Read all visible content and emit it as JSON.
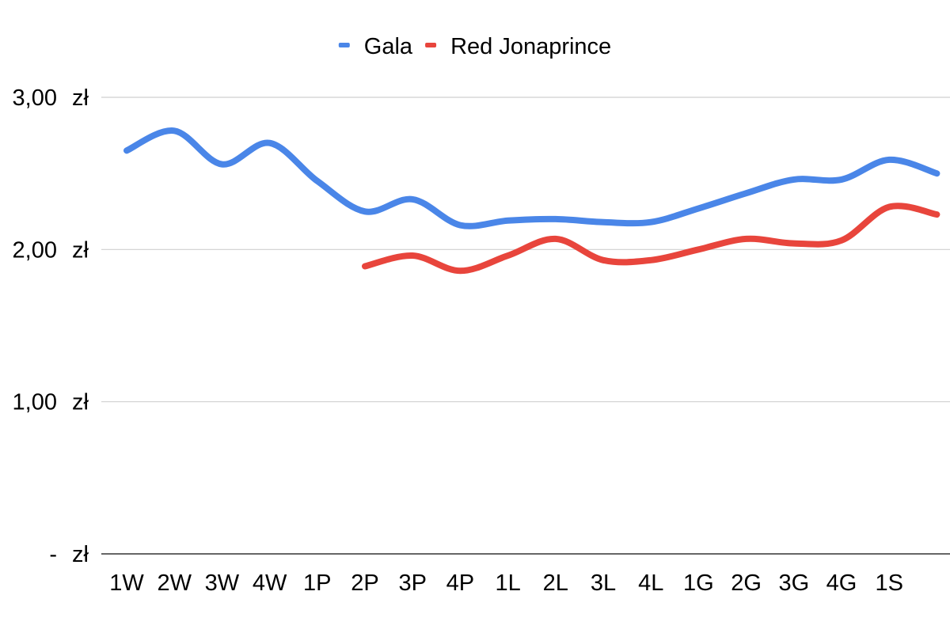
{
  "chart_data": {
    "type": "line",
    "title": "",
    "xlabel": "",
    "ylabel": "",
    "legend_position": "top-center",
    "categories": [
      "1W",
      "2W",
      "3W",
      "4W",
      "1P",
      "2P",
      "3P",
      "4P",
      "1L",
      "2L",
      "3L",
      "4L",
      "1G",
      "2G",
      "3G",
      "4G",
      "1S",
      ""
    ],
    "ylim": [
      0,
      3
    ],
    "yticks": [
      {
        "value": 3,
        "label": "3,00",
        "unit": "zł"
      },
      {
        "value": 2,
        "label": "2,00",
        "unit": "zł"
      },
      {
        "value": 1,
        "label": "1,00",
        "unit": "zł"
      },
      {
        "value": 0,
        "label": "-",
        "unit": "zł"
      }
    ],
    "series": [
      {
        "name": "Gala",
        "color": "#4A86E8",
        "values": [
          2.65,
          2.78,
          2.56,
          2.7,
          2.45,
          2.25,
          2.33,
          2.16,
          2.19,
          2.2,
          2.18,
          2.18,
          2.27,
          2.37,
          2.46,
          2.46,
          2.59,
          2.5
        ]
      },
      {
        "name": "Red Jonaprince",
        "color": "#E8453C",
        "values": [
          null,
          null,
          null,
          null,
          null,
          1.89,
          1.96,
          1.86,
          1.96,
          2.07,
          1.93,
          1.93,
          2.0,
          2.07,
          2.04,
          2.06,
          2.28,
          2.23
        ]
      }
    ]
  }
}
